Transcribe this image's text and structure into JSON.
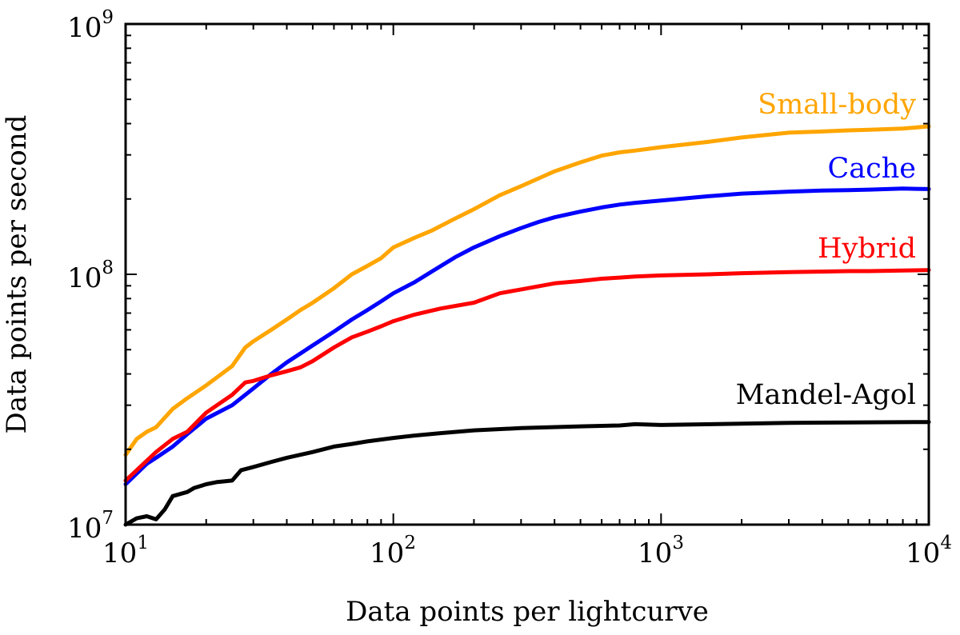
{
  "chart_data": {
    "type": "line",
    "title": "",
    "xlabel": "Data points per lightcurve",
    "ylabel": "Data points per second",
    "xscale": "log",
    "yscale": "log",
    "xlim": [
      10,
      10000
    ],
    "ylim": [
      10000000,
      1000000000
    ],
    "grid": false,
    "x_ticks": [
      {
        "base": "10",
        "exp": "1",
        "value": 10
      },
      {
        "base": "10",
        "exp": "2",
        "value": 100
      },
      {
        "base": "10",
        "exp": "3",
        "value": 1000
      },
      {
        "base": "10",
        "exp": "4",
        "value": 10000
      }
    ],
    "y_ticks": [
      {
        "base": "10",
        "exp": "7",
        "value": 10000000
      },
      {
        "base": "10",
        "exp": "8",
        "value": 100000000
      },
      {
        "base": "10",
        "exp": "9",
        "value": 1000000000
      }
    ],
    "series": [
      {
        "name": "Small-body",
        "color": "#ffa500",
        "x": [
          10,
          11,
          12,
          13,
          15,
          17,
          20,
          25,
          28,
          30,
          35,
          40,
          45,
          50,
          60,
          70,
          80,
          90,
          100,
          120,
          140,
          170,
          200,
          250,
          300,
          350,
          400,
          500,
          600,
          700,
          800,
          1000,
          1500,
          2000,
          3000,
          4000,
          5000,
          6000,
          8000,
          10000
        ],
        "values": [
          19000000,
          22000000,
          23500000,
          24500000,
          29000000,
          32000000,
          36000000,
          43000000,
          51000000,
          54000000,
          60000000,
          66000000,
          72000000,
          77000000,
          88000000,
          100000000,
          108000000,
          116000000,
          128000000,
          140000000,
          150000000,
          167000000,
          182000000,
          207000000,
          225000000,
          242000000,
          258000000,
          280000000,
          298000000,
          307000000,
          312000000,
          322000000,
          338000000,
          352000000,
          368000000,
          372000000,
          376000000,
          378000000,
          382000000,
          390000000
        ]
      },
      {
        "name": "Cache",
        "color": "#0000ff",
        "x": [
          10,
          11,
          12,
          13,
          15,
          17,
          20,
          25,
          30,
          35,
          40,
          50,
          60,
          70,
          80,
          90,
          100,
          120,
          140,
          170,
          200,
          250,
          300,
          350,
          400,
          500,
          600,
          700,
          800,
          1000,
          1500,
          2000,
          3000,
          4000,
          5000,
          6000,
          8000,
          10000
        ],
        "values": [
          14500000,
          16000000,
          17500000,
          18500000,
          20500000,
          23000000,
          26500000,
          30000000,
          35000000,
          40000000,
          44500000,
          52000000,
          59000000,
          66000000,
          72000000,
          78000000,
          84000000,
          93000000,
          103000000,
          117000000,
          128000000,
          142000000,
          153000000,
          162000000,
          169000000,
          178000000,
          185000000,
          190000000,
          193000000,
          197000000,
          205000000,
          210000000,
          214000000,
          216000000,
          217000000,
          218000000,
          220000000,
          219000000
        ]
      },
      {
        "name": "Hybrid",
        "color": "#ff0000",
        "x": [
          10,
          11,
          12,
          13,
          15,
          17,
          20,
          25,
          28,
          30,
          35,
          40,
          45,
          50,
          60,
          70,
          80,
          90,
          100,
          120,
          150,
          200,
          250,
          300,
          400,
          500,
          600,
          700,
          800,
          1000,
          1500,
          2000,
          3000,
          4000,
          5000,
          6000,
          8000,
          10000
        ],
        "values": [
          15000000,
          16500000,
          18000000,
          19500000,
          22000000,
          23500000,
          28000000,
          33000000,
          37000000,
          37500000,
          39500000,
          41000000,
          42500000,
          45000000,
          51000000,
          56000000,
          59000000,
          62000000,
          65000000,
          69000000,
          73000000,
          77000000,
          84000000,
          87000000,
          92000000,
          94000000,
          96000000,
          97000000,
          98000000,
          99000000,
          100000000,
          101000000,
          102000000,
          102500000,
          103000000,
          103000000,
          103500000,
          104000000
        ]
      },
      {
        "name": "Mandel-Agol",
        "color": "#000000",
        "x": [
          10,
          11,
          12,
          13,
          14,
          15,
          17,
          18,
          20,
          22,
          25,
          27,
          30,
          35,
          40,
          50,
          60,
          70,
          80,
          100,
          120,
          150,
          200,
          300,
          500,
          700,
          800,
          1000,
          2000,
          3000,
          5000,
          10000
        ],
        "values": [
          10000000,
          10600000,
          10800000,
          10500000,
          11500000,
          13000000,
          13500000,
          14000000,
          14500000,
          14800000,
          15000000,
          16500000,
          17000000,
          17800000,
          18500000,
          19500000,
          20500000,
          21000000,
          21500000,
          22200000,
          22700000,
          23200000,
          23800000,
          24300000,
          24700000,
          24900000,
          25200000,
          25000000,
          25300000,
          25500000,
          25600000,
          25700000
        ]
      }
    ],
    "annotations": [
      "Small-body",
      "Cache",
      "Hybrid",
      "Mandel-Agol"
    ]
  }
}
